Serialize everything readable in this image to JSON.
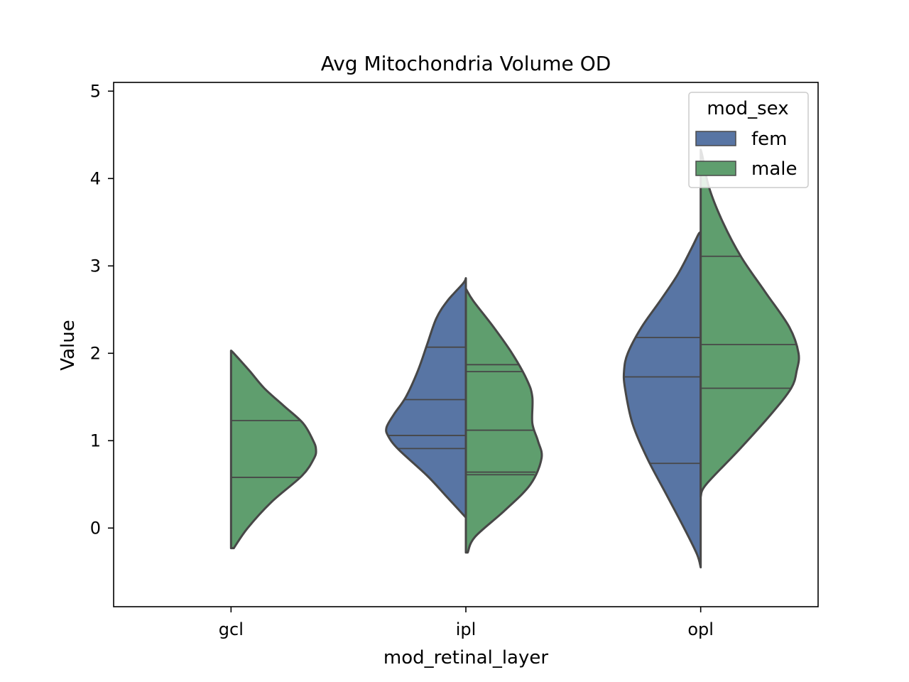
{
  "chart_data": {
    "type": "violin",
    "title": "Avg Mitochondria Volume OD",
    "xlabel": "mod_retinal_layer",
    "ylabel": "Value",
    "ylim": [
      -0.9,
      5.1
    ],
    "yticks": [
      0,
      1,
      2,
      3,
      4,
      5
    ],
    "categories": [
      "gcl",
      "ipl",
      "opl"
    ],
    "legend": {
      "title": "mod_sex",
      "placement": "top-right",
      "entries": [
        {
          "name": "fem",
          "color": "#5875a4"
        },
        {
          "name": "male",
          "color": "#5f9e6e"
        }
      ]
    },
    "split": true,
    "inner": "quartile",
    "series": [
      {
        "name": "fem",
        "color": "#5875a4",
        "side": "left",
        "violins": [
          null,
          {
            "category": "ipl",
            "profile": [
              [
                0.12,
                0.0
              ],
              [
                0.35,
                0.2
              ],
              [
                0.6,
                0.42
              ],
              [
                0.9,
                0.73
              ],
              [
                1.05,
                0.84
              ],
              [
                1.15,
                0.86
              ],
              [
                1.3,
                0.78
              ],
              [
                1.5,
                0.65
              ],
              [
                1.8,
                0.52
              ],
              [
                2.1,
                0.42
              ],
              [
                2.4,
                0.32
              ],
              [
                2.6,
                0.2
              ],
              [
                2.8,
                0.03
              ],
              [
                2.86,
                0.0
              ]
            ],
            "quartiles": [
              0.91,
              1.06,
              1.47
            ],
            "extra_lines": [
              2.07
            ]
          },
          {
            "category": "opl",
            "profile": [
              [
                -0.45,
                0.0
              ],
              [
                -0.3,
                0.04
              ],
              [
                0.0,
                0.18
              ],
              [
                0.4,
                0.38
              ],
              [
                0.8,
                0.58
              ],
              [
                1.2,
                0.74
              ],
              [
                1.6,
                0.82
              ],
              [
                1.8,
                0.83
              ],
              [
                2.0,
                0.79
              ],
              [
                2.3,
                0.64
              ],
              [
                2.6,
                0.44
              ],
              [
                2.9,
                0.25
              ],
              [
                3.2,
                0.1
              ],
              [
                3.37,
                0.02
              ],
              [
                3.37,
                0.0
              ]
            ],
            "quartiles": [
              0.74,
              1.73,
              2.18
            ]
          }
        ]
      },
      {
        "name": "male",
        "color": "#5f9e6e",
        "side": "right",
        "violins": [
          {
            "category": "gcl",
            "profile": [
              [
                -0.23,
                0.03
              ],
              [
                0.0,
                0.18
              ],
              [
                0.3,
                0.44
              ],
              [
                0.6,
                0.77
              ],
              [
                0.8,
                0.9
              ],
              [
                0.9,
                0.92
              ],
              [
                1.0,
                0.89
              ],
              [
                1.2,
                0.78
              ],
              [
                1.4,
                0.57
              ],
              [
                1.6,
                0.36
              ],
              [
                1.8,
                0.2
              ],
              [
                2.0,
                0.03
              ],
              [
                2.03,
                0.0
              ]
            ],
            "quartiles": [
              0.58,
              1.23
            ]
          },
          {
            "category": "ipl",
            "profile": [
              [
                -0.28,
                0.02
              ],
              [
                -0.1,
                0.1
              ],
              [
                0.2,
                0.42
              ],
              [
                0.5,
                0.7
              ],
              [
                0.8,
                0.82
              ],
              [
                1.0,
                0.78
              ],
              [
                1.2,
                0.72
              ],
              [
                1.5,
                0.72
              ],
              [
                1.7,
                0.66
              ],
              [
                2.0,
                0.5
              ],
              [
                2.3,
                0.3
              ],
              [
                2.6,
                0.08
              ],
              [
                2.74,
                0.0
              ]
            ],
            "quartiles": [
              0.61,
              1.12,
              1.79
            ],
            "extra_lines": [
              0.64,
              1.87
            ]
          },
          {
            "category": "opl",
            "profile": [
              [
                0.36,
                0.0
              ],
              [
                0.5,
                0.06
              ],
              [
                0.9,
                0.42
              ],
              [
                1.3,
                0.76
              ],
              [
                1.6,
                0.98
              ],
              [
                1.8,
                1.04
              ],
              [
                2.0,
                1.06
              ],
              [
                2.3,
                0.96
              ],
              [
                2.7,
                0.7
              ],
              [
                3.1,
                0.44
              ],
              [
                3.5,
                0.24
              ],
              [
                3.9,
                0.09
              ],
              [
                4.25,
                0.02
              ],
              [
                4.33,
                0.0
              ]
            ],
            "quartiles": [
              1.6,
              2.1,
              3.11
            ]
          }
        ]
      }
    ]
  }
}
